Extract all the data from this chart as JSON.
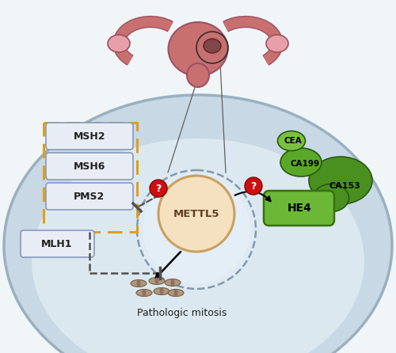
{
  "bg_color": "#f0f5f8",
  "outer_cell_fill": "#c8d8e5",
  "outer_cell_edge": "#9ab0c0",
  "inner_cell_fill": "#dce8f0",
  "inner_cell_edge": "#9ab0c0",
  "nucleus_fill": "#e0eaf2",
  "nucleus_edge": "#8099b0",
  "msh_box_fill": "#e8edf5",
  "msh_box_edge": "#8899bb",
  "dashed_box_color": "#e0a010",
  "mlh1_fill": "#e8edf5",
  "mlh1_edge": "#8899bb",
  "mettl5_fill": "#f5e0c0",
  "mettl5_edge": "#c8a060",
  "hea4_fill": "#6ab835",
  "hea4_edge": "#3a7010",
  "green_dark": "#4a9020",
  "green_mid": "#5aa828",
  "green_light": "#7ac040",
  "green_edge": "#2a5810",
  "red_circle": "#cc1010",
  "uterus_color": "#c87070",
  "uterus_dark": "#a05060",
  "ovary_color": "#e8a0a8",
  "tumor_color": "#804848",
  "dashed_color": "#505050",
  "text_dark": "#202020",
  "msh_labels": [
    "MSH2",
    "MSH6",
    "PMS2"
  ],
  "mlh1_label": "MLH1",
  "mettl5_label": "METTL5",
  "pathologic_label": "Pathologic mitosis",
  "he4_label": "HE4",
  "cea_label": "CEA",
  "ca199_label": "CA199",
  "ca153_label": "CA153"
}
